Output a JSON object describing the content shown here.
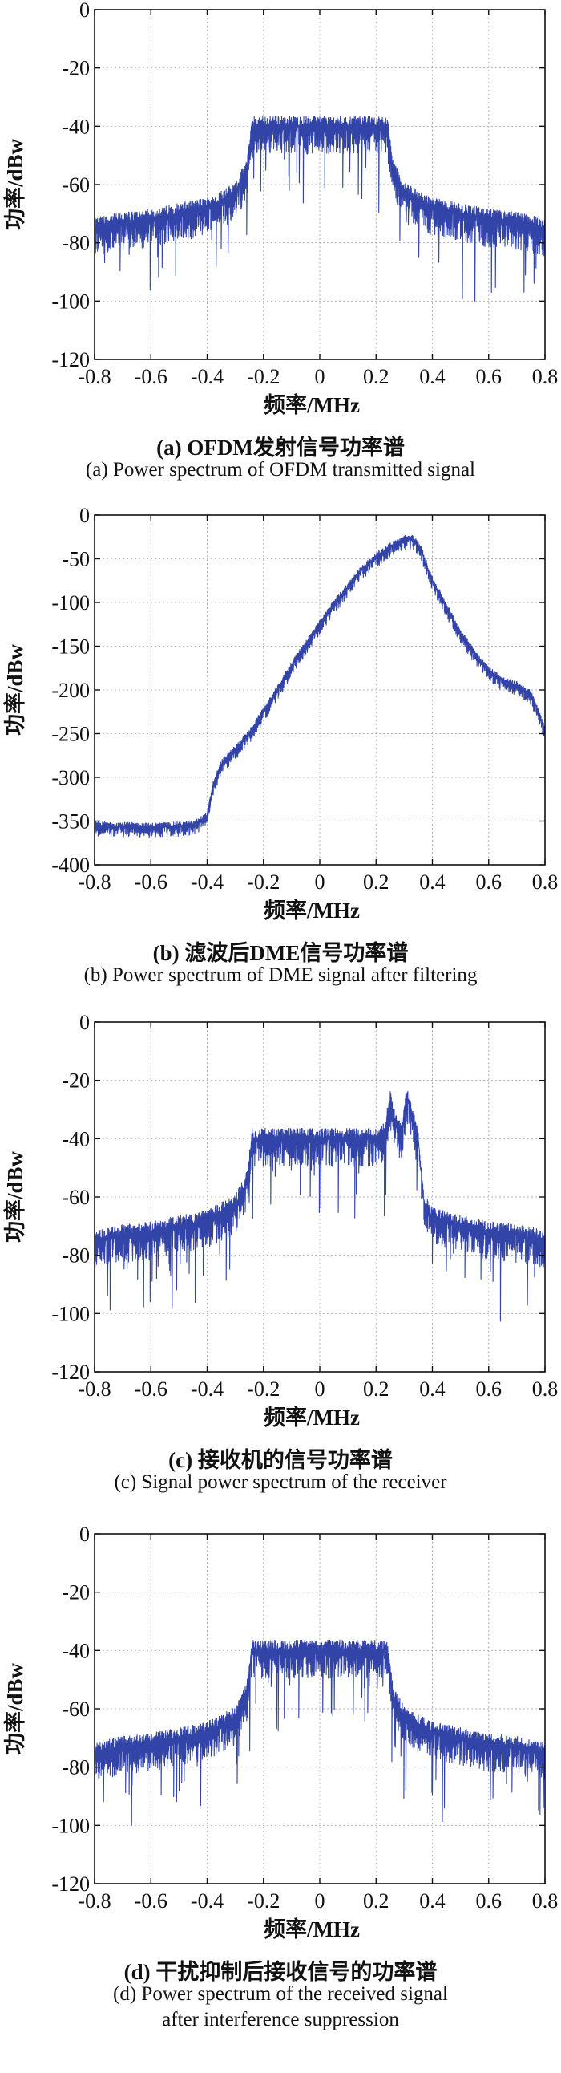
{
  "chart_data": [
    {
      "type": "line",
      "xlabel": "频率/MHz",
      "ylabel": "功率/dBw",
      "xlim": [
        -0.8,
        0.8
      ],
      "ylim": [
        -120,
        0
      ],
      "xticks": [
        "-0.8",
        "-0.6",
        "-0.4",
        "-0.2",
        "0",
        "0.2",
        "0.4",
        "0.6",
        "0.8"
      ],
      "yticks": [
        "0",
        "-20",
        "-40",
        "-60",
        "-80",
        "-100",
        "-120"
      ],
      "grid": true,
      "color": "#3344a8",
      "caption_zh": "(a) OFDM发射信号功率谱",
      "caption_en": "(a) Power spectrum of OFDM transmitted signal",
      "series": [
        {
          "x": [
            -0.8,
            -0.7,
            -0.6,
            -0.5,
            -0.4,
            -0.3,
            -0.26,
            -0.24,
            -0.2,
            -0.1,
            0,
            0.1,
            0.2,
            0.24,
            0.26,
            0.3,
            0.4,
            0.5,
            0.6,
            0.7,
            0.8
          ],
          "y": [
            -75,
            -73,
            -72,
            -70,
            -68,
            -63,
            -55,
            -40,
            -40,
            -40,
            -40,
            -40,
            -40,
            -40,
            -55,
            -63,
            -68,
            -70,
            -72,
            -73,
            -75
          ]
        }
      ]
    },
    {
      "type": "line",
      "xlabel": "频率/MHz",
      "ylabel": "功率/dBw",
      "xlim": [
        -0.8,
        0.8
      ],
      "ylim": [
        -400,
        0
      ],
      "xticks": [
        "-0.8",
        "-0.6",
        "-0.4",
        "-0.2",
        "0",
        "0.2",
        "0.4",
        "0.6",
        "0.8"
      ],
      "yticks": [
        "0",
        "-50",
        "-100",
        "-150",
        "-200",
        "-250",
        "-300",
        "-350",
        "-400"
      ],
      "grid": true,
      "color": "#3344a8",
      "caption_zh": "(b) 滤波后DME信号功率谱",
      "caption_en": "(b) Power spectrum of DME signal after filtering",
      "series": [
        {
          "x": [
            -0.8,
            -0.6,
            -0.45,
            -0.4,
            -0.38,
            -0.35,
            -0.3,
            -0.25,
            -0.2,
            -0.15,
            -0.1,
            -0.05,
            0,
            0.05,
            0.1,
            0.15,
            0.2,
            0.25,
            0.3,
            0.33,
            0.36,
            0.4,
            0.45,
            0.5,
            0.55,
            0.6,
            0.65,
            0.7,
            0.75,
            0.8
          ],
          "y": [
            -355,
            -357,
            -355,
            -345,
            -310,
            -285,
            -268,
            -250,
            -225,
            -200,
            -172,
            -148,
            -125,
            -102,
            -82,
            -62,
            -48,
            -36,
            -28,
            -27,
            -40,
            -75,
            -105,
            -135,
            -158,
            -178,
            -190,
            -195,
            -205,
            -245
          ]
        }
      ]
    },
    {
      "type": "line",
      "xlabel": "频率/MHz",
      "ylabel": "功率/dBw",
      "xlim": [
        -0.8,
        0.8
      ],
      "ylim": [
        -120,
        0
      ],
      "xticks": [
        "-0.8",
        "-0.6",
        "-0.4",
        "-0.2",
        "0",
        "0.2",
        "0.4",
        "0.6",
        "0.8"
      ],
      "yticks": [
        "0",
        "-20",
        "-40",
        "-60",
        "-80",
        "-100",
        "-120"
      ],
      "grid": true,
      "color": "#3344a8",
      "caption_zh": "(c) 接收机的信号功率谱",
      "caption_en": "(c) Signal power spectrum of the receiver",
      "series": [
        {
          "x": [
            -0.8,
            -0.7,
            -0.6,
            -0.5,
            -0.4,
            -0.3,
            -0.26,
            -0.24,
            -0.2,
            -0.1,
            0,
            0.1,
            0.2,
            0.23,
            0.25,
            0.27,
            0.29,
            0.31,
            0.33,
            0.35,
            0.37,
            0.4,
            0.5,
            0.6,
            0.7,
            0.8
          ],
          "y": [
            -75,
            -73,
            -72,
            -70,
            -68,
            -63,
            -55,
            -40,
            -40,
            -40,
            -40,
            -40,
            -40,
            -38,
            -27,
            -35,
            -38,
            -25,
            -32,
            -40,
            -62,
            -67,
            -70,
            -72,
            -73,
            -75
          ]
        }
      ]
    },
    {
      "type": "line",
      "xlabel": "频率/MHz",
      "ylabel": "功率/dBw",
      "xlim": [
        -0.8,
        0.8
      ],
      "ylim": [
        -120,
        0
      ],
      "xticks": [
        "-0.8",
        "-0.6",
        "-0.4",
        "-0.2",
        "0",
        "0.2",
        "0.4",
        "0.6",
        "0.8"
      ],
      "yticks": [
        "0",
        "-20",
        "-40",
        "-60",
        "-80",
        "-100",
        "-120"
      ],
      "grid": true,
      "color": "#3344a8",
      "caption_zh": "(d) 干扰抑制后接收信号的功率谱",
      "caption_en": "(d) Power spectrum of the received signal",
      "caption_en2": "after interference suppression",
      "series": [
        {
          "x": [
            -0.8,
            -0.7,
            -0.6,
            -0.5,
            -0.4,
            -0.3,
            -0.26,
            -0.24,
            -0.2,
            -0.1,
            0,
            0.1,
            0.2,
            0.24,
            0.26,
            0.3,
            0.4,
            0.5,
            0.6,
            0.7,
            0.8
          ],
          "y": [
            -75,
            -73,
            -72,
            -70,
            -68,
            -63,
            -55,
            -40,
            -40,
            -40,
            -40,
            -40,
            -40,
            -40,
            -55,
            -63,
            -68,
            -70,
            -72,
            -73,
            -75
          ]
        }
      ]
    }
  ]
}
